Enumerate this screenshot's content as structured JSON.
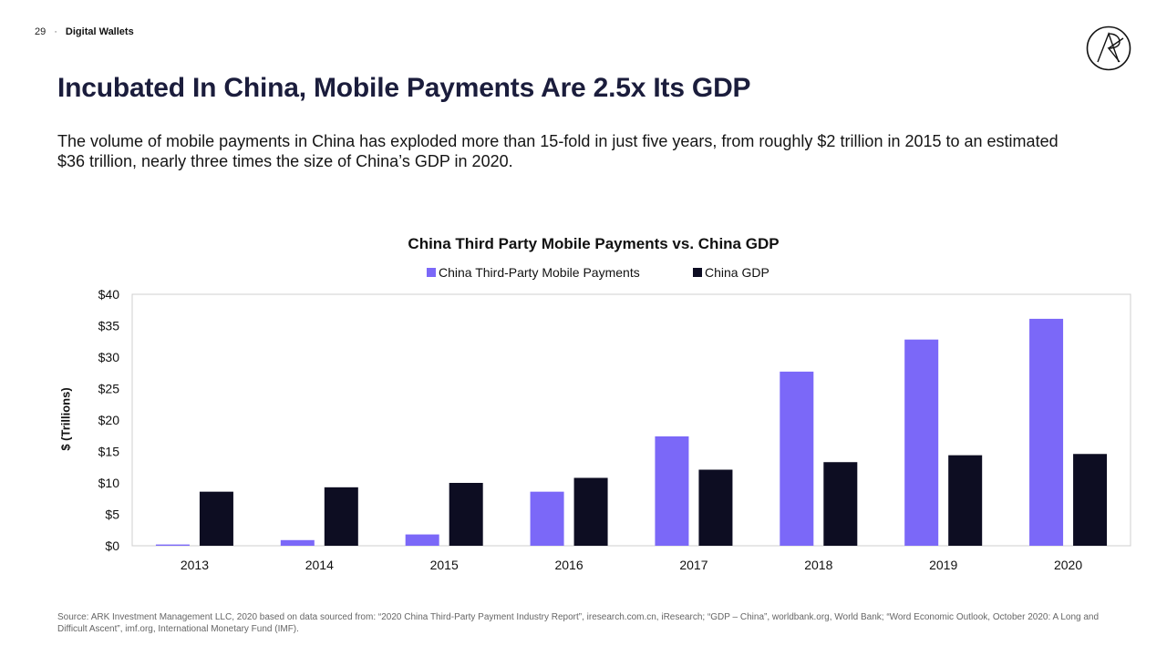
{
  "header": {
    "page_number": "29",
    "separator": "·",
    "section": "Digital Wallets"
  },
  "logo": {
    "name": "ARK logo"
  },
  "title": "Incubated In China, Mobile Payments Are 2.5x Its GDP",
  "subtitle": "The volume of mobile payments in China has exploded more than 15-fold in just five years, from roughly $2 trillion in 2015 to an estimated $36 trillion, nearly three times the size of China’s GDP in 2020.",
  "colors": {
    "mobile_payments": "#7b68f8",
    "gdp": "#0d0d22",
    "axis": "#cfcfcf",
    "text": "#111111"
  },
  "chart_data": {
    "type": "bar",
    "title": "China Third Party Mobile Payments vs. China GDP",
    "xlabel": "",
    "ylabel": "$ (Trillions)",
    "ylim": [
      0,
      40
    ],
    "yticks": [
      0,
      5,
      10,
      15,
      20,
      25,
      30,
      35,
      40
    ],
    "ytick_labels": [
      "$0",
      "$5",
      "$10",
      "$15",
      "$20",
      "$25",
      "$30",
      "$35",
      "$40"
    ],
    "grid": false,
    "legend_position": "top-center",
    "categories": [
      "2013",
      "2014",
      "2015",
      "2016",
      "2017",
      "2018",
      "2019",
      "2020"
    ],
    "series": [
      {
        "name": "China Third-Party Mobile Payments",
        "color": "#7b68f8",
        "values": [
          0.2,
          0.9,
          1.8,
          8.6,
          17.4,
          27.7,
          32.8,
          36.1
        ]
      },
      {
        "name": "China GDP",
        "color": "#0d0d22",
        "values": [
          8.6,
          9.3,
          10.0,
          10.8,
          12.1,
          13.3,
          14.4,
          14.6
        ]
      }
    ]
  },
  "source": "Source: ARK Investment Management LLC, 2020 based on data sourced from: “2020 China Third-Party Payment Industry Report”, iresearch.com.cn, iResearch; “GDP – China”, worldbank.org, World Bank; “Word Economic Outlook, October 2020: A Long and Difficult Ascent”, imf.org, International Monetary Fund (IMF)."
}
